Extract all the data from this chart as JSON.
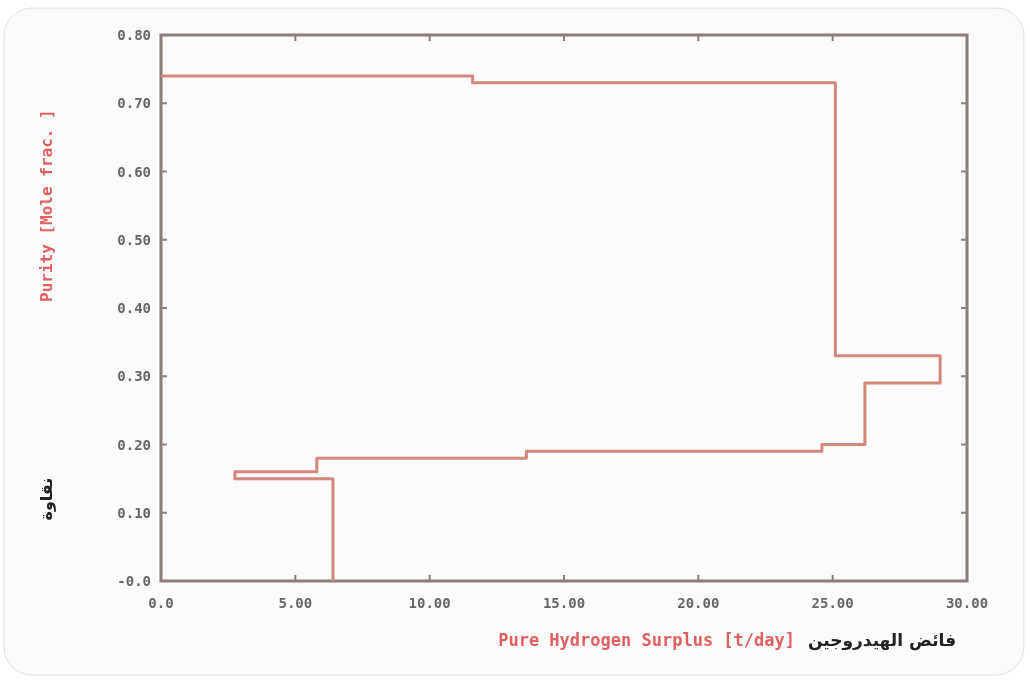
{
  "chart_data": {
    "type": "line",
    "xlabel": "Pure Hydrogen Surplus [t/day]",
    "ylabel": "Purity [Mole frac. ]",
    "annotations": [
      "فائض الهيدروجين",
      "نقاوة"
    ],
    "series": [
      {
        "color": "#d4877c",
        "x": [
          0,
          11.6,
          11.6,
          25.1,
          25.1,
          29.0,
          29.0,
          26.2,
          26.2,
          24.6,
          24.6,
          13.6,
          13.6,
          5.8,
          5.8,
          2.75,
          2.75,
          6.4,
          6.4
        ],
        "values": [
          0.74,
          0.74,
          0.73,
          0.73,
          0.33,
          0.33,
          0.29,
          0.29,
          0.2,
          0.2,
          0.19,
          0.19,
          0.18,
          0.18,
          0.16,
          0.16,
          0.15,
          0.15,
          0
        ]
      }
    ],
    "xlim": [
      0,
      30
    ],
    "xticks": [
      {
        "value": 0,
        "label": "0.0"
      },
      {
        "value": 5,
        "label": "5.00"
      },
      {
        "value": 10,
        "label": "10.00"
      },
      {
        "value": 15,
        "label": "15.00"
      },
      {
        "value": 20,
        "label": "20.00"
      },
      {
        "value": 25,
        "label": "25.00"
      },
      {
        "value": 30,
        "label": "30.00"
      }
    ],
    "ylim": [
      0,
      0.8
    ],
    "yticks": [
      {
        "value": 0,
        "label": "-0.0"
      },
      {
        "value": 0.1,
        "label": "0.10"
      },
      {
        "value": 0.2,
        "label": "0.20"
      },
      {
        "value": 0.3,
        "label": "0.30"
      },
      {
        "value": 0.4,
        "label": "0.40"
      },
      {
        "value": 0.5,
        "label": "0.50"
      },
      {
        "value": 0.6,
        "label": "0.60"
      },
      {
        "value": 0.7,
        "label": "0.70"
      },
      {
        "value": 0.8,
        "label": "0.80"
      }
    ],
    "grid": false,
    "marker": "none",
    "line_style": "solid"
  }
}
